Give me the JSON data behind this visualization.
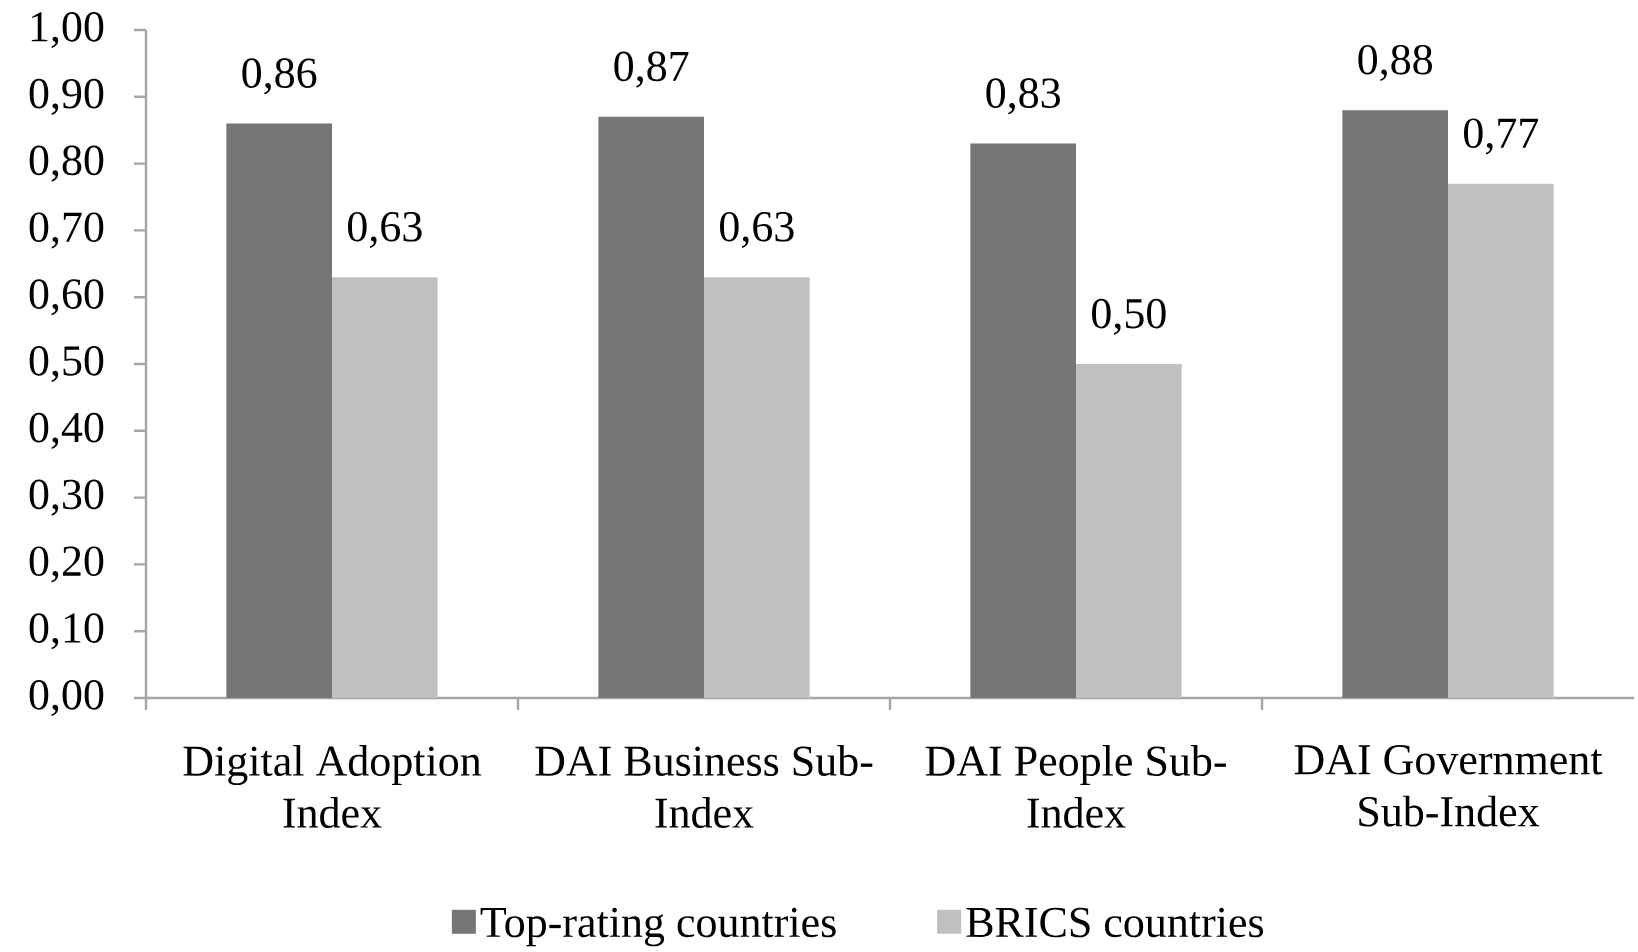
{
  "chart_data": {
    "type": "bar",
    "categories": [
      "Digital Adoption Index",
      "DAI Business Sub-Index",
      "DAI People Sub-Index",
      "DAI Government Sub-Index"
    ],
    "series": [
      {
        "name": "Top-rating countries",
        "color": "#767676",
        "values": [
          0.86,
          0.87,
          0.83,
          0.88
        ],
        "value_labels": [
          "0,86",
          "0,87",
          "0,83",
          "0,88"
        ]
      },
      {
        "name": "BRICS countries",
        "color": "#c0c0c0",
        "values": [
          0.63,
          0.63,
          0.5,
          0.77
        ],
        "value_labels": [
          "0,63",
          "0,63",
          "0,50",
          "0,77"
        ]
      }
    ],
    "ylim": [
      0,
      1
    ],
    "yticks": [
      {
        "value": 0,
        "label": "0,00"
      },
      {
        "value": 0.1,
        "label": "0,10"
      },
      {
        "value": 0.2,
        "label": "0,20"
      },
      {
        "value": 0.3,
        "label": "0,30"
      },
      {
        "value": 0.4,
        "label": "0,40"
      },
      {
        "value": 0.5,
        "label": "0,50"
      },
      {
        "value": 0.6,
        "label": "0,60"
      },
      {
        "value": 0.7,
        "label": "0,70"
      },
      {
        "value": 0.8,
        "label": "0,80"
      },
      {
        "value": 0.9,
        "label": "0,90"
      },
      {
        "value": 1,
        "label": "1,00"
      }
    ],
    "legend": "bottom"
  }
}
